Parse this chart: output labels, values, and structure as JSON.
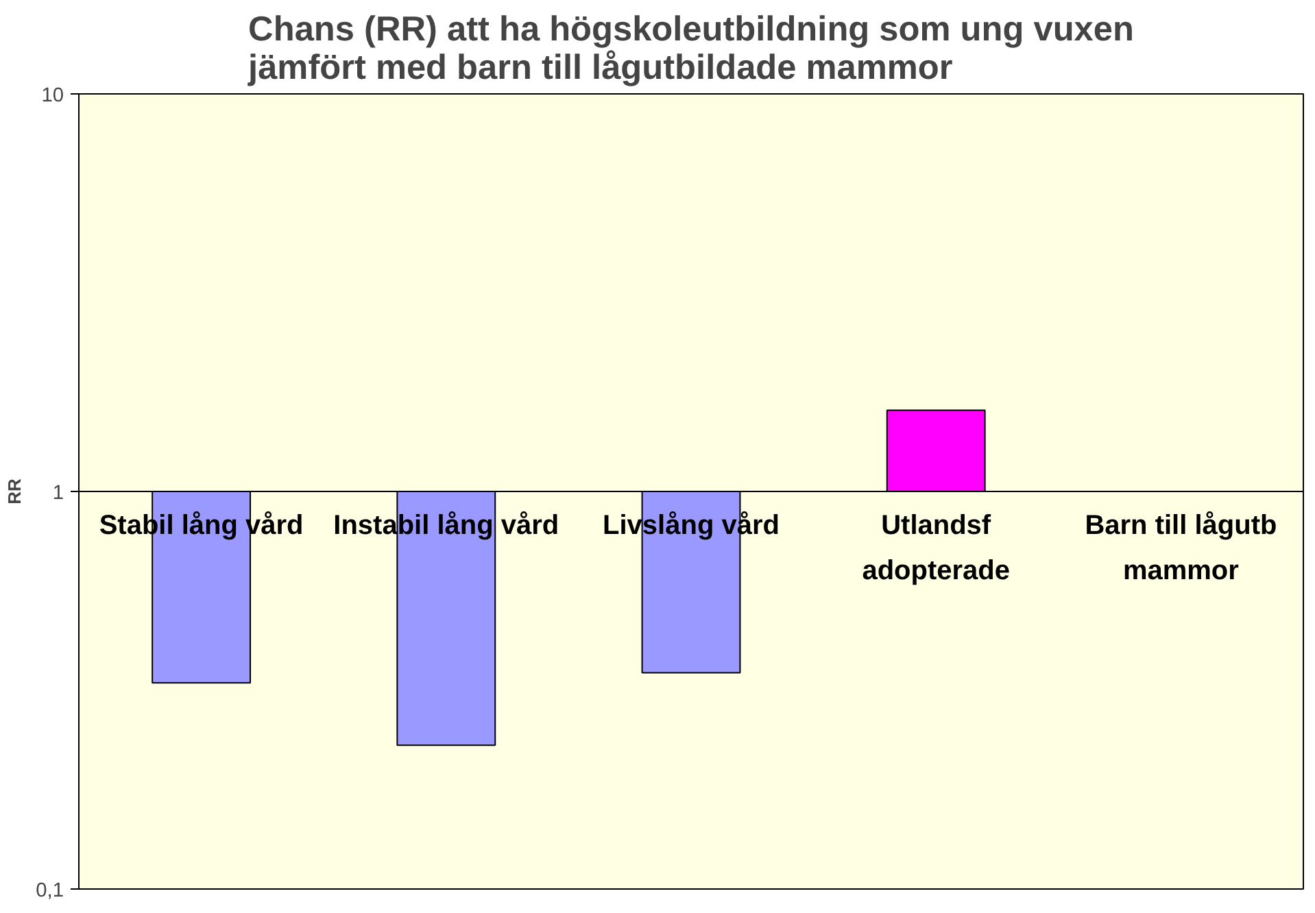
{
  "chart_data": {
    "type": "bar",
    "title": "Chans (RR) att ha högskoleutbildning som ung vuxen\njämfört med barn till lågutbildade mammor",
    "ylabel": "RR",
    "categories": [
      "Stabil lång vård",
      "Instabil lång vård",
      "Livslång vård",
      "Utlandsf\nadopterade",
      "Barn till lågutb\nmammor"
    ],
    "values": [
      -0.67,
      -0.77,
      -0.65,
      0.6,
      null
    ],
    "base": [
      1,
      1,
      1,
      1,
      null
    ],
    "colors": [
      "#9999ff",
      "#9999ff",
      "#9999ff",
      "#ff00ff",
      "#9999ff"
    ],
    "log": true,
    "ylim": [
      0.1,
      10
    ],
    "yticks": [
      {
        "value": 0.1,
        "label": "0,1"
      },
      1,
      10
    ],
    "grid": false
  }
}
